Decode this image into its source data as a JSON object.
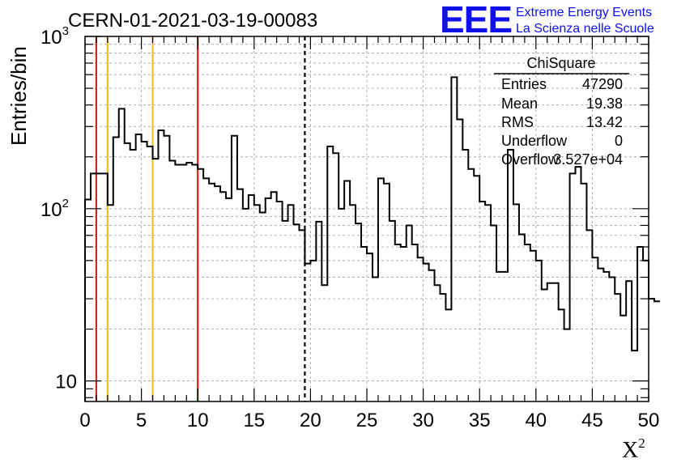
{
  "page": {
    "title": "CERN-01-2021-03-19-00083",
    "logo_text": "EEE",
    "logo_line1": "Extreme Energy Events",
    "logo_line2": "La Scienza nelle Scuole"
  },
  "stats_box": {
    "name": "ChiSquare",
    "rows": [
      {
        "label": "Entries",
        "value": "47290"
      },
      {
        "label": "Mean",
        "value": "19.38"
      },
      {
        "label": "RMS",
        "value": "13.42"
      },
      {
        "label": "Underflow",
        "value": "0"
      },
      {
        "label": "Overflow",
        "value": "3.527e+04"
      }
    ]
  },
  "colors": {
    "histogram": "#000000",
    "red_line": "#e0201b",
    "yellow_line": "#f0c020",
    "grid": "#a8a8a8",
    "logo_blue": "#1010ee"
  },
  "chart_data": {
    "type": "histogram",
    "xlabel": "Χ²",
    "ylabel": "Entries/bin",
    "xlim": [
      0,
      50
    ],
    "ylim": [
      7.6,
      1000
    ],
    "yscale": "log",
    "grid": true,
    "bin_width": 0.5,
    "x_ticks": [
      "0",
      "5",
      "10",
      "15",
      "20",
      "25",
      "30",
      "35",
      "40",
      "45",
      "50"
    ],
    "y_ticks": [
      {
        "value": 10,
        "base": "10",
        "exp": ""
      },
      {
        "value": 100,
        "base": "10",
        "exp": "2"
      },
      {
        "value": 1000,
        "base": "10",
        "exp": "3"
      }
    ],
    "values": [
      113,
      160,
      160,
      160,
      105,
      260,
      380,
      240,
      220,
      270,
      245,
      230,
      195,
      285,
      265,
      190,
      180,
      180,
      185,
      180,
      170,
      150,
      140,
      135,
      125,
      115,
      265,
      130,
      100,
      120,
      105,
      95,
      115,
      125,
      110,
      85,
      105,
      81,
      75,
      48,
      50,
      84,
      36,
      230,
      210,
      100,
      145,
      105,
      82,
      60,
      55,
      40,
      150,
      140,
      85,
      62,
      60,
      80,
      62,
      52,
      48,
      44,
      36,
      32,
      26,
      580,
      330,
      220,
      170,
      155,
      110,
      105,
      80,
      43,
      43,
      220,
      106,
      71,
      62,
      57,
      50,
      34,
      37,
      37,
      26,
      20,
      160,
      175,
      140,
      75,
      52,
      45,
      43,
      40,
      32,
      24,
      38,
      15,
      60,
      50,
      30,
      29
    ],
    "vlines": [
      {
        "x": 1,
        "color": "red",
        "style": "solid"
      },
      {
        "x": 2,
        "color": "yellow",
        "style": "solid"
      },
      {
        "x": 6,
        "color": "yellow",
        "style": "solid"
      },
      {
        "x": 10,
        "color": "red",
        "style": "solid"
      },
      {
        "x": 19.5,
        "color": "black",
        "style": "dashed"
      }
    ]
  }
}
